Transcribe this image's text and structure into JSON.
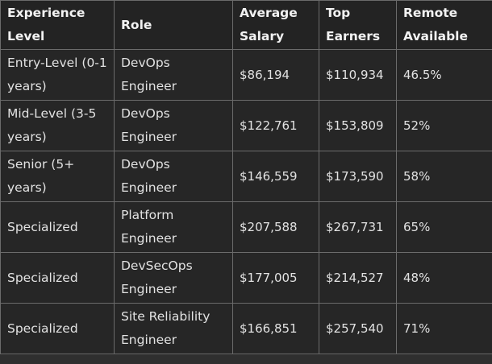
{
  "table": {
    "headers": [
      "Experience Level",
      "Role",
      "Average Salary",
      "Top Earners",
      "Remote Available"
    ],
    "rows": [
      {
        "level": "Entry-Level (0-1 years)",
        "role": "DevOps Engineer",
        "avg": "$86,194",
        "top": "$110,934",
        "remote": "46.5%"
      },
      {
        "level": "Mid-Level (3-5 years)",
        "role": "DevOps Engineer",
        "avg": "$122,761",
        "top": "$153,809",
        "remote": "52%"
      },
      {
        "level": "Senior (5+ years)",
        "role": "DevOps Engineer",
        "avg": "$146,559",
        "top": "$173,590",
        "remote": "58%"
      },
      {
        "level": "Specialized",
        "role": "Platform Engineer",
        "avg": "$207,588",
        "top": "$267,731",
        "remote": "65%"
      },
      {
        "level": "Specialized",
        "role": "DevSecOps Engineer",
        "avg": "$177,005",
        "top": "$214,527",
        "remote": "48%"
      },
      {
        "level": "Specialized",
        "role": "Site Reliability Engineer",
        "avg": "$166,851",
        "top": "$257,540",
        "remote": "71%"
      }
    ]
  }
}
